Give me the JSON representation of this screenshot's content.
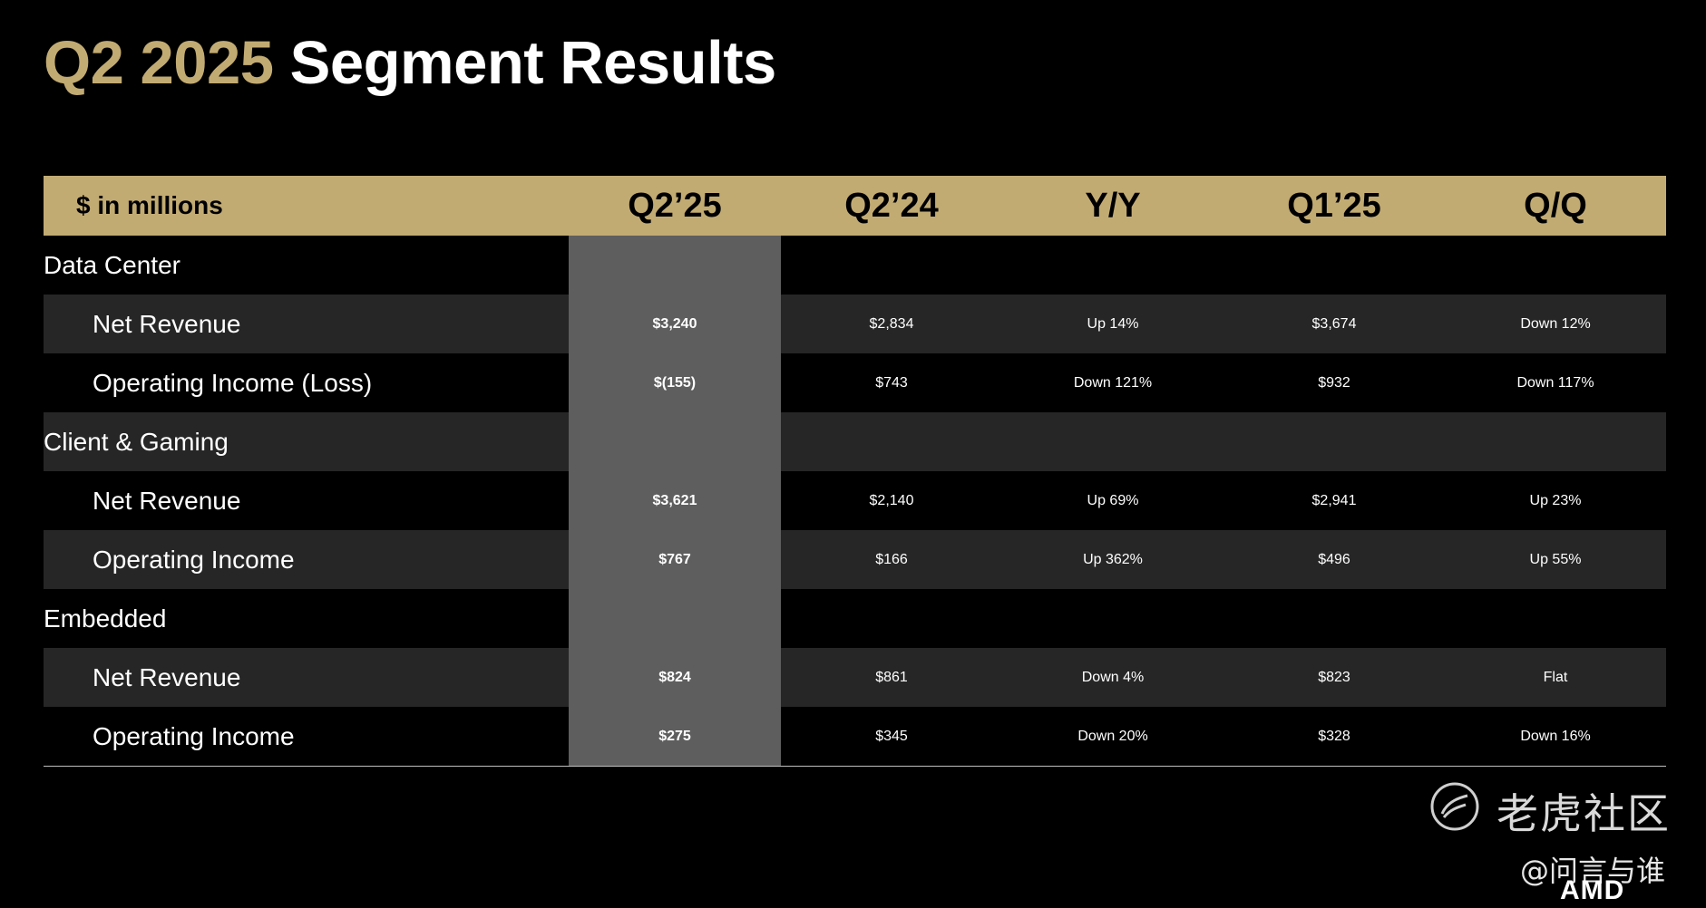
{
  "title": {
    "accent": "Q2 2025",
    "rest": "Segment Results"
  },
  "colors": {
    "gold": "#c2ab73",
    "highlight_column": "#5e5e5e",
    "alt_row": "#262626"
  },
  "table": {
    "headers": [
      "$ in millions",
      "Q2’25",
      "Q2’24",
      "Y/Y",
      "Q1’25",
      "Q/Q"
    ],
    "rows": [
      {
        "type": "segment",
        "label": "Data Center"
      },
      {
        "type": "data",
        "label": "Net Revenue",
        "q225": "$3,240",
        "q224": "$2,834",
        "yy": "Up 14%",
        "q125": "$3,674",
        "qq": "Down 12%"
      },
      {
        "type": "data",
        "label": "Operating Income (Loss)",
        "q225": "$(155)",
        "q224": "$743",
        "yy": "Down 121%",
        "q125": "$932",
        "qq": "Down 117%"
      },
      {
        "type": "segment",
        "label": "Client & Gaming"
      },
      {
        "type": "data",
        "label": "Net Revenue",
        "q225": "$3,621",
        "q224": "$2,140",
        "yy": "Up 69%",
        "q125": "$2,941",
        "qq": "Up 23%"
      },
      {
        "type": "data",
        "label": "Operating Income",
        "q225": "$767",
        "q224": "$166",
        "yy": "Up 362%",
        "q125": "$496",
        "qq": "Up 55%"
      },
      {
        "type": "segment",
        "label": "Embedded"
      },
      {
        "type": "data",
        "label": "Net Revenue",
        "q225": "$824",
        "q224": "$861",
        "yy": "Down 4%",
        "q125": "$823",
        "qq": "Flat"
      },
      {
        "type": "data",
        "label": "Operating Income",
        "q225": "$275",
        "q224": "$345",
        "yy": "Down 20%",
        "q125": "$328",
        "qq": "Down 16%"
      }
    ]
  },
  "watermark": {
    "brand": "老虎社区",
    "user": "@问言与谁",
    "icon": "tiger-icon"
  },
  "logo": {
    "text": "AMD"
  }
}
